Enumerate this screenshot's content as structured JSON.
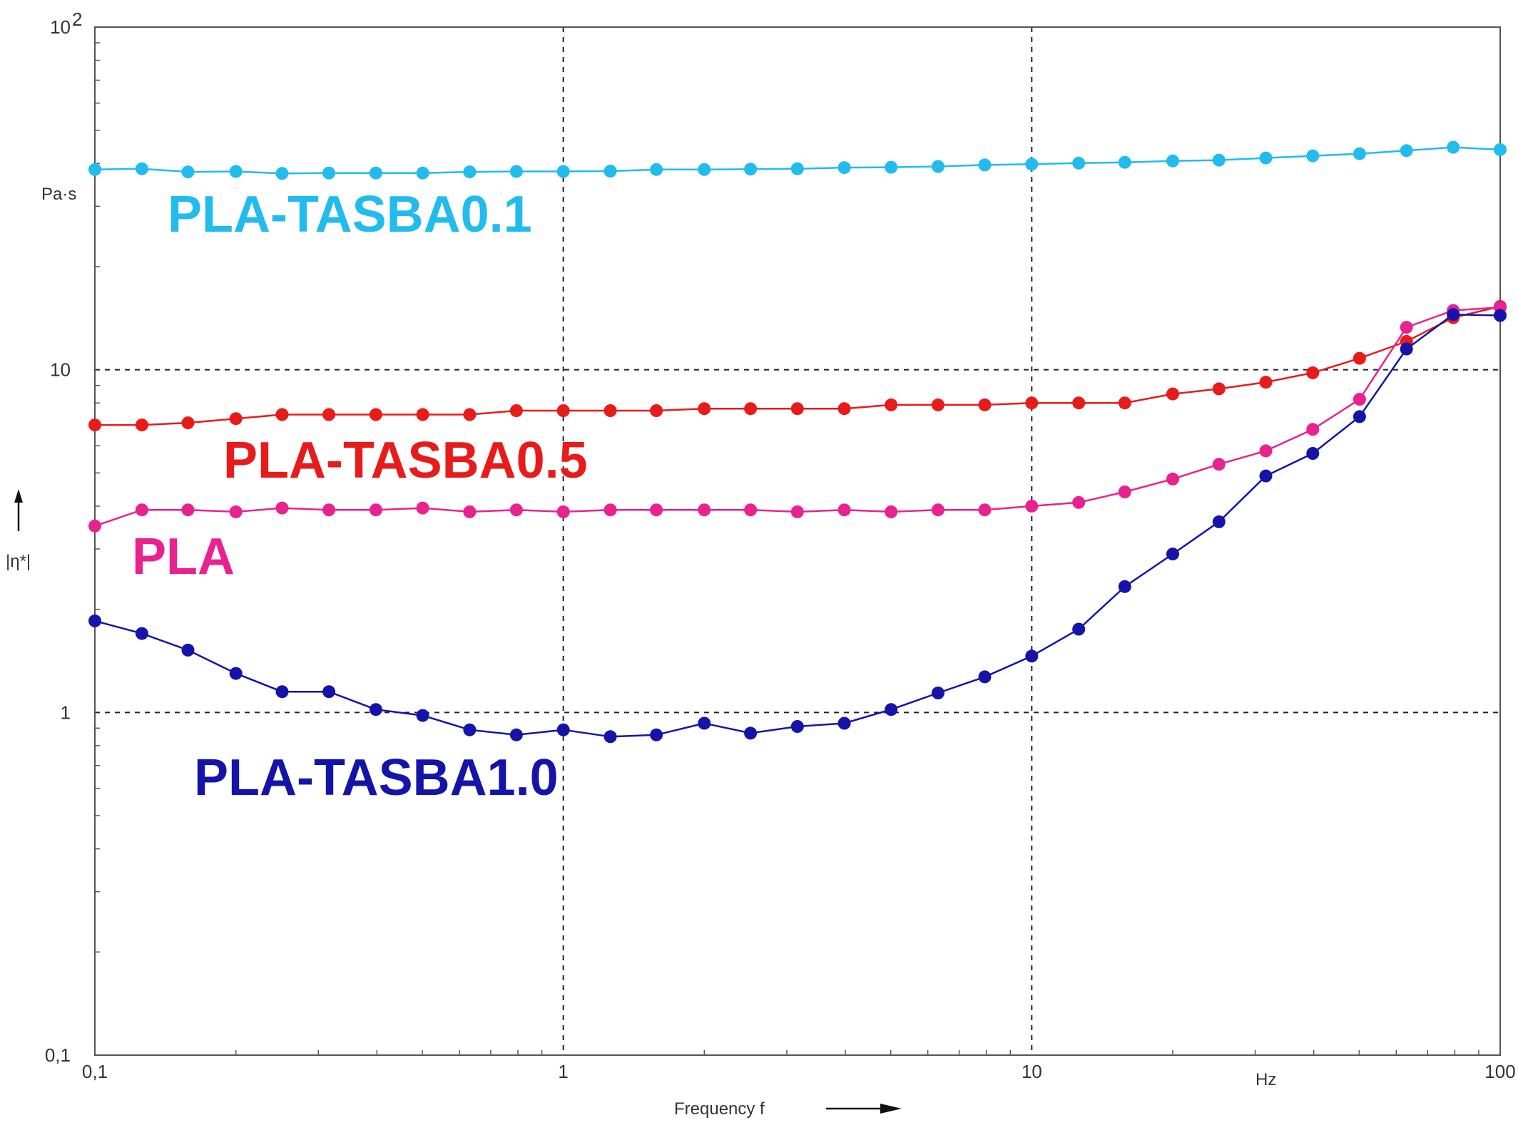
{
  "chart_data": {
    "type": "line",
    "xscale": "log",
    "yscale": "log",
    "xlim": [
      0.1,
      100
    ],
    "ylim": [
      0.1,
      100
    ],
    "grid": true,
    "xlabel": "Frequency f",
    "xunit": "Hz",
    "ylabel": "|η*|",
    "yunit": "Pa·s",
    "x_ticks": [
      {
        "value": 0.1,
        "label": "0,1"
      },
      {
        "value": 1,
        "label": "1"
      },
      {
        "value": 10,
        "label": "10"
      },
      {
        "value": 100,
        "label": "100"
      }
    ],
    "y_ticks": [
      {
        "value": 0.1,
        "label": "0,1"
      },
      {
        "value": 1,
        "label": "1"
      },
      {
        "value": 10,
        "label": "10"
      },
      {
        "value": 100,
        "label": "10",
        "sup": "2"
      }
    ],
    "x": [
      0.1,
      0.126,
      0.158,
      0.2,
      0.251,
      0.316,
      0.398,
      0.501,
      0.631,
      0.794,
      1.0,
      1.26,
      1.58,
      2.0,
      2.51,
      3.16,
      3.98,
      5.01,
      6.31,
      7.94,
      10.0,
      12.6,
      15.8,
      20.0,
      25.1,
      31.6,
      39.8,
      50.1,
      63.1,
      79.4,
      100
    ],
    "series": [
      {
        "name": "PLA-TASBA0.1",
        "color": "#22bbee",
        "values": [
          38.4,
          38.6,
          37.8,
          37.9,
          37.4,
          37.5,
          37.5,
          37.5,
          37.8,
          37.9,
          37.9,
          38.0,
          38.4,
          38.4,
          38.5,
          38.6,
          38.9,
          39.0,
          39.2,
          39.6,
          39.8,
          40.1,
          40.3,
          40.7,
          40.9,
          41.5,
          42.1,
          42.7,
          43.6,
          44.6,
          43.9
        ]
      },
      {
        "name": "PLA-TASBA0.5",
        "color": "#e81b1b",
        "values": [
          6.9,
          6.9,
          7.0,
          7.2,
          7.4,
          7.4,
          7.4,
          7.4,
          7.4,
          7.6,
          7.6,
          7.6,
          7.6,
          7.7,
          7.7,
          7.7,
          7.7,
          7.9,
          7.9,
          7.9,
          8.0,
          8.0,
          8.0,
          8.5,
          8.8,
          9.2,
          9.8,
          10.8,
          12.1,
          14.2,
          15.3
        ]
      },
      {
        "name": "PLA",
        "color": "#e8228f",
        "values": [
          3.5,
          3.9,
          3.9,
          3.85,
          3.95,
          3.9,
          3.9,
          3.95,
          3.85,
          3.9,
          3.85,
          3.9,
          3.9,
          3.9,
          3.9,
          3.85,
          3.9,
          3.85,
          3.9,
          3.9,
          4.0,
          4.1,
          4.4,
          4.8,
          5.3,
          5.8,
          6.7,
          8.2,
          13.3,
          14.9,
          15.2
        ]
      },
      {
        "name": "PLA-TASBA1.0",
        "color": "#1414a8",
        "values": [
          1.85,
          1.7,
          1.52,
          1.3,
          1.15,
          1.15,
          1.02,
          0.98,
          0.89,
          0.86,
          0.89,
          0.85,
          0.86,
          0.93,
          0.87,
          0.91,
          0.93,
          1.02,
          1.14,
          1.27,
          1.46,
          1.75,
          2.33,
          2.9,
          3.6,
          4.9,
          5.7,
          7.3,
          11.5,
          14.5,
          14.4
        ]
      }
    ]
  }
}
